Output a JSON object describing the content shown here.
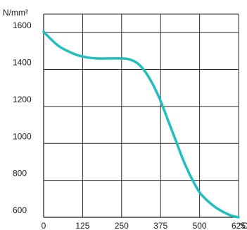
{
  "chart_data": {
    "type": "line",
    "title": "",
    "ylabel": "N/mm²",
    "xlabel": "°C",
    "xlim": [
      0,
      625
    ],
    "ylim": [
      600,
      1700
    ],
    "x_ticks": [
      0,
      125,
      250,
      375,
      500,
      625
    ],
    "x_tick_labels": [
      "0",
      "125",
      "250",
      "375",
      "500",
      "625"
    ],
    "y_ticks": [
      600,
      800,
      1000,
      1200,
      1400,
      1600
    ],
    "y_tick_labels": [
      "600",
      "800",
      "1000",
      "1200",
      "1400",
      "1600"
    ],
    "grid": true,
    "line_color": "#1fbfbf",
    "series": [
      {
        "x": [
          0,
          20,
          50,
          90,
          125,
          170,
          215,
          250,
          275,
          300,
          325,
          350,
          375,
          400,
          425,
          450,
          475,
          500,
          525,
          550,
          575,
          600,
          625
        ],
        "y": [
          1605,
          1570,
          1525,
          1490,
          1470,
          1460,
          1460,
          1460,
          1455,
          1435,
          1390,
          1320,
          1230,
          1120,
          1010,
          900,
          810,
          735,
          690,
          655,
          630,
          610,
          600
        ]
      }
    ]
  }
}
